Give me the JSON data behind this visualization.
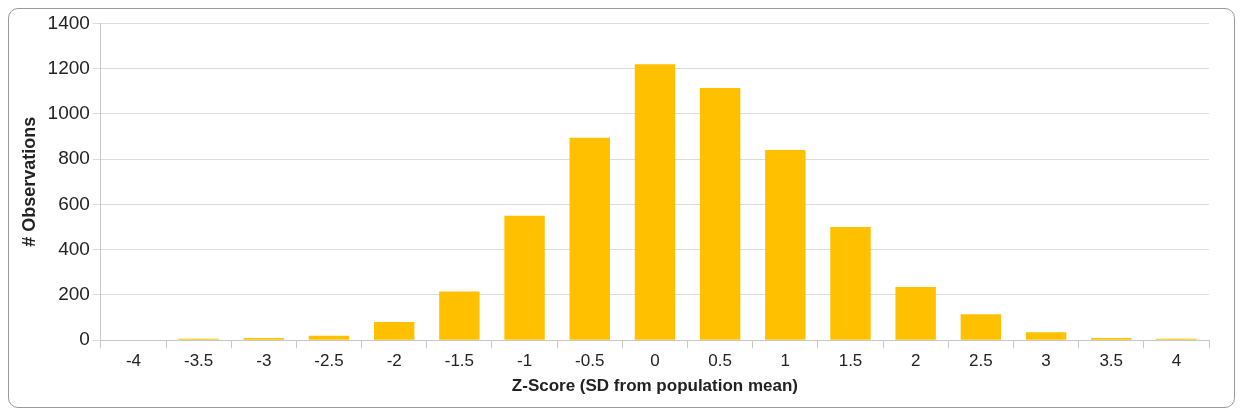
{
  "chart_data": {
    "type": "bar",
    "xlabel": "Z-Score (SD from population mean)",
    "ylabel": "# Observations",
    "categories": [
      "-4",
      "-3.5",
      "-3",
      "-2.5",
      "-2",
      "-1.5",
      "-1",
      "-0.5",
      "0",
      "0.5",
      "1",
      "1.5",
      "2",
      "2.5",
      "3",
      "3.5",
      "4"
    ],
    "values": [
      0,
      6,
      10,
      20,
      80,
      215,
      550,
      895,
      1220,
      1115,
      840,
      500,
      235,
      115,
      35,
      10,
      6
    ],
    "color": "#ffc000",
    "ylim": [
      0,
      1400
    ],
    "yticks": [
      0,
      200,
      400,
      600,
      800,
      1000,
      1200,
      1400
    ],
    "grid": "y",
    "legend": false
  }
}
